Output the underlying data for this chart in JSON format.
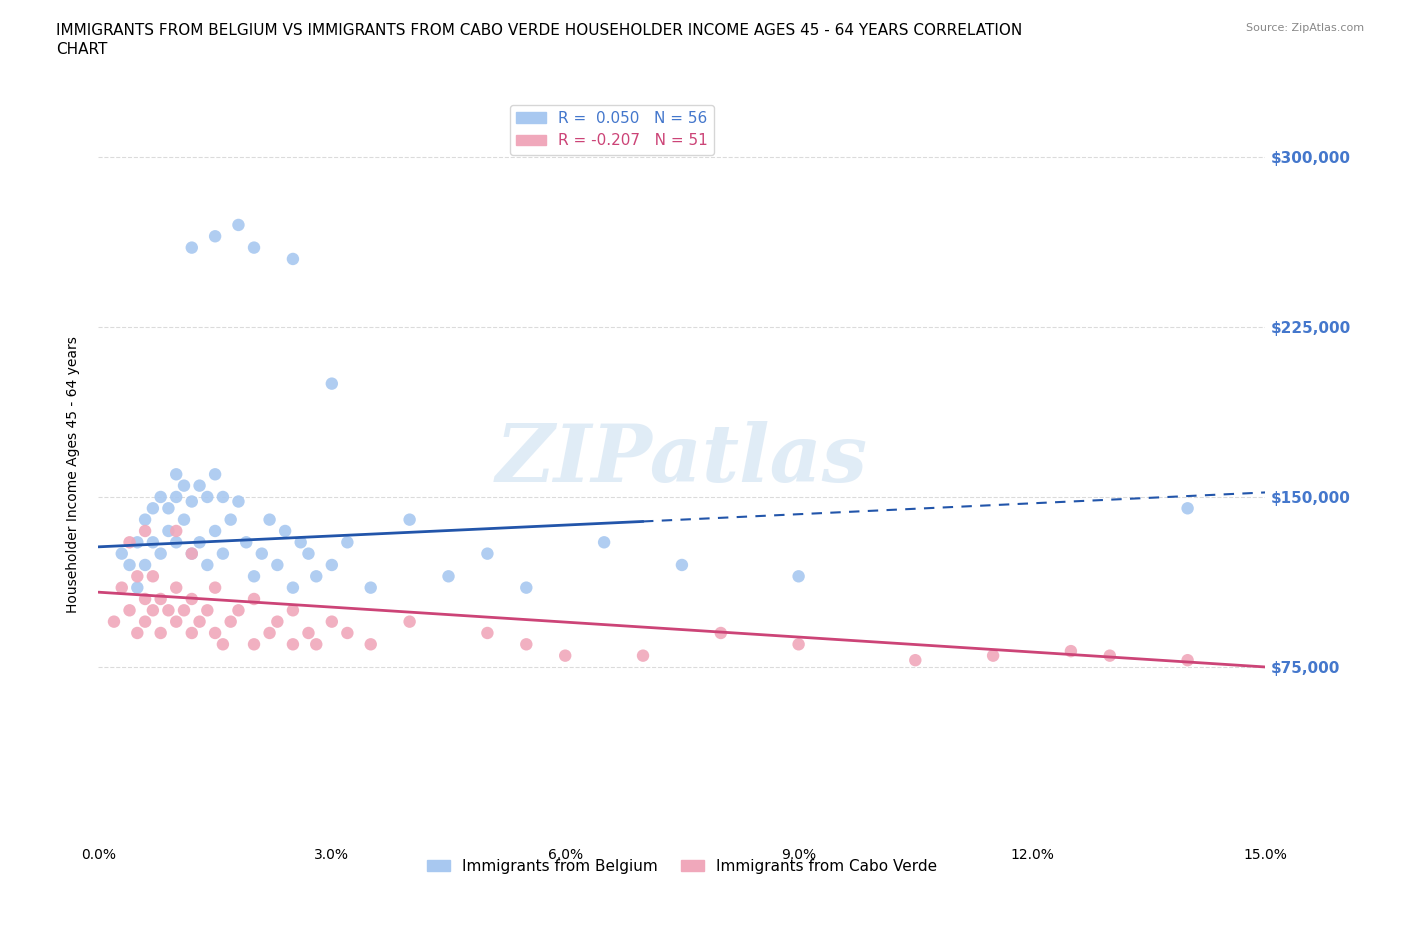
{
  "title_line1": "IMMIGRANTS FROM BELGIUM VS IMMIGRANTS FROM CABO VERDE HOUSEHOLDER INCOME AGES 45 - 64 YEARS CORRELATION",
  "title_line2": "CHART",
  "source": "Source: ZipAtlas.com",
  "xlabel_ticks": [
    "0.0%",
    "3.0%",
    "6.0%",
    "9.0%",
    "12.0%",
    "15.0%"
  ],
  "xlabel_vals": [
    0.0,
    3.0,
    6.0,
    9.0,
    12.0,
    15.0
  ],
  "ylabel": "Householder Income Ages 45 - 64 years",
  "yticks": [
    0,
    75000,
    150000,
    225000,
    300000
  ],
  "ytick_labels": [
    "",
    "$75,000",
    "$150,000",
    "$225,000",
    "$300,000"
  ],
  "xmin": 0.0,
  "xmax": 15.0,
  "ymin": 0,
  "ymax": 320000,
  "watermark": "ZIPatlas",
  "belgium_color": "#a8c8f0",
  "cabo_verde_color": "#f0a8bb",
  "belgium_line_color": "#2255aa",
  "cabo_verde_line_color": "#cc4477",
  "belgium_R": 0.05,
  "belgium_N": 56,
  "cabo_verde_R": -0.207,
  "cabo_verde_N": 51,
  "belgium_scatter_x": [
    0.3,
    0.4,
    0.5,
    0.5,
    0.6,
    0.6,
    0.7,
    0.7,
    0.8,
    0.8,
    0.9,
    0.9,
    1.0,
    1.0,
    1.0,
    1.1,
    1.1,
    1.2,
    1.2,
    1.3,
    1.3,
    1.4,
    1.4,
    1.5,
    1.5,
    1.6,
    1.6,
    1.7,
    1.8,
    1.9,
    2.0,
    2.1,
    2.2,
    2.3,
    2.4,
    2.5,
    2.6,
    2.7,
    2.8,
    3.0,
    3.2,
    3.5,
    4.0,
    4.5,
    5.0,
    5.5,
    6.5,
    7.5,
    9.0,
    1.2,
    1.5,
    1.8,
    2.0,
    2.5,
    3.0,
    14.0
  ],
  "belgium_scatter_y": [
    125000,
    120000,
    110000,
    130000,
    120000,
    140000,
    130000,
    145000,
    125000,
    150000,
    135000,
    145000,
    130000,
    150000,
    160000,
    140000,
    155000,
    125000,
    148000,
    130000,
    155000,
    120000,
    150000,
    135000,
    160000,
    125000,
    150000,
    140000,
    148000,
    130000,
    115000,
    125000,
    140000,
    120000,
    135000,
    110000,
    130000,
    125000,
    115000,
    120000,
    130000,
    110000,
    140000,
    115000,
    125000,
    110000,
    130000,
    120000,
    115000,
    260000,
    265000,
    270000,
    260000,
    255000,
    200000,
    145000
  ],
  "cabo_verde_scatter_x": [
    0.2,
    0.3,
    0.4,
    0.5,
    0.5,
    0.6,
    0.6,
    0.7,
    0.7,
    0.8,
    0.8,
    0.9,
    1.0,
    1.0,
    1.1,
    1.2,
    1.2,
    1.3,
    1.4,
    1.5,
    1.5,
    1.6,
    1.7,
    1.8,
    2.0,
    2.0,
    2.2,
    2.3,
    2.5,
    2.5,
    2.7,
    2.8,
    3.0,
    3.2,
    3.5,
    4.0,
    5.0,
    5.5,
    6.0,
    7.0,
    8.0,
    9.0,
    10.5,
    11.5,
    12.5,
    13.0,
    14.0,
    0.4,
    0.6,
    1.0,
    1.2
  ],
  "cabo_verde_scatter_y": [
    95000,
    110000,
    100000,
    90000,
    115000,
    95000,
    105000,
    100000,
    115000,
    90000,
    105000,
    100000,
    95000,
    110000,
    100000,
    90000,
    105000,
    95000,
    100000,
    90000,
    110000,
    85000,
    95000,
    100000,
    85000,
    105000,
    90000,
    95000,
    85000,
    100000,
    90000,
    85000,
    95000,
    90000,
    85000,
    95000,
    90000,
    85000,
    80000,
    80000,
    90000,
    85000,
    78000,
    80000,
    82000,
    80000,
    78000,
    130000,
    135000,
    135000,
    125000
  ],
  "grid_color": "#cccccc",
  "background_color": "#ffffff",
  "title_fontsize": 11,
  "axis_label_fontsize": 10,
  "tick_fontsize": 10,
  "legend_fontsize": 11
}
